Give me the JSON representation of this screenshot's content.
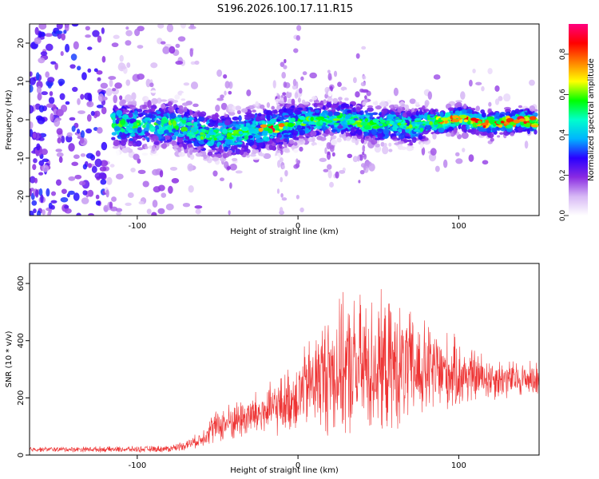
{
  "title": "S196.2026.100.17.11.R15",
  "chart_data": [
    {
      "type": "heatmap",
      "name": "spectrogram",
      "xlabel": "Height of straight line (km)",
      "ylabel": "Frequency (Hz)",
      "xlim": [
        -167,
        150
      ],
      "ylim": [
        -25,
        25
      ],
      "xticks": [
        -100,
        0,
        100
      ],
      "yticks": [
        -20,
        -10,
        0,
        10,
        20
      ],
      "ridge": {
        "x": [
          -115,
          -100,
          -90,
          -80,
          -70,
          -60,
          -50,
          -40,
          -30,
          -20,
          -12,
          0,
          10,
          20,
          30,
          40,
          50,
          60,
          70,
          80,
          90,
          100,
          110,
          120,
          130,
          140,
          148
        ],
        "y": [
          -1,
          -1.5,
          -1.5,
          -1,
          -2,
          -3.5,
          -4,
          -4,
          -3,
          -2.5,
          -2,
          -0.5,
          0,
          0,
          0.5,
          -1,
          -1.5,
          -1,
          -2,
          -0.5,
          -0.5,
          0.5,
          -0.5,
          -1,
          -0.5,
          0,
          -1
        ]
      },
      "colorbar": {
        "label": "Normalized spectral amplitude",
        "range": [
          0.0,
          0.95
        ],
        "ticks": [
          0.0,
          0.2,
          0.4,
          0.6,
          0.8
        ],
        "tick_labels": [
          "0.0",
          "0.2",
          "0.4",
          "0.6",
          "0.8"
        ],
        "colormap": [
          "#ffffff",
          "#d7b8f5",
          "#8a2be2",
          "#2a00ff",
          "#00b4ff",
          "#00ffcc",
          "#00ff00",
          "#ffff00",
          "#ff8000",
          "#ff0000",
          "#ff007f"
        ]
      }
    },
    {
      "type": "line",
      "name": "snr",
      "xlabel": "Height of straight line (km)",
      "ylabel": "SNR (10 * v/v)",
      "xlim": [
        -167,
        150
      ],
      "ylim": [
        0,
        670
      ],
      "xticks": [
        -100,
        0,
        100
      ],
      "yticks": [
        0,
        200,
        400,
        600
      ],
      "color": "#ee3333",
      "envelope": {
        "x": [
          -167,
          -100,
          -80,
          -70,
          -60,
          -55,
          -40,
          -20,
          -10,
          0,
          10,
          20,
          30,
          40,
          50,
          60,
          70,
          80,
          90,
          100,
          110,
          120,
          130,
          140,
          150
        ],
        "mean": [
          20,
          20,
          22,
          35,
          55,
          90,
          120,
          150,
          175,
          210,
          260,
          290,
          300,
          305,
          310,
          305,
          300,
          295,
          290,
          280,
          275,
          270,
          265,
          265,
          270
        ],
        "spread": [
          10,
          12,
          14,
          20,
          30,
          60,
          80,
          100,
          120,
          150,
          200,
          260,
          280,
          290,
          280,
          260,
          230,
          200,
          170,
          140,
          110,
          90,
          80,
          70,
          70
        ]
      }
    }
  ]
}
